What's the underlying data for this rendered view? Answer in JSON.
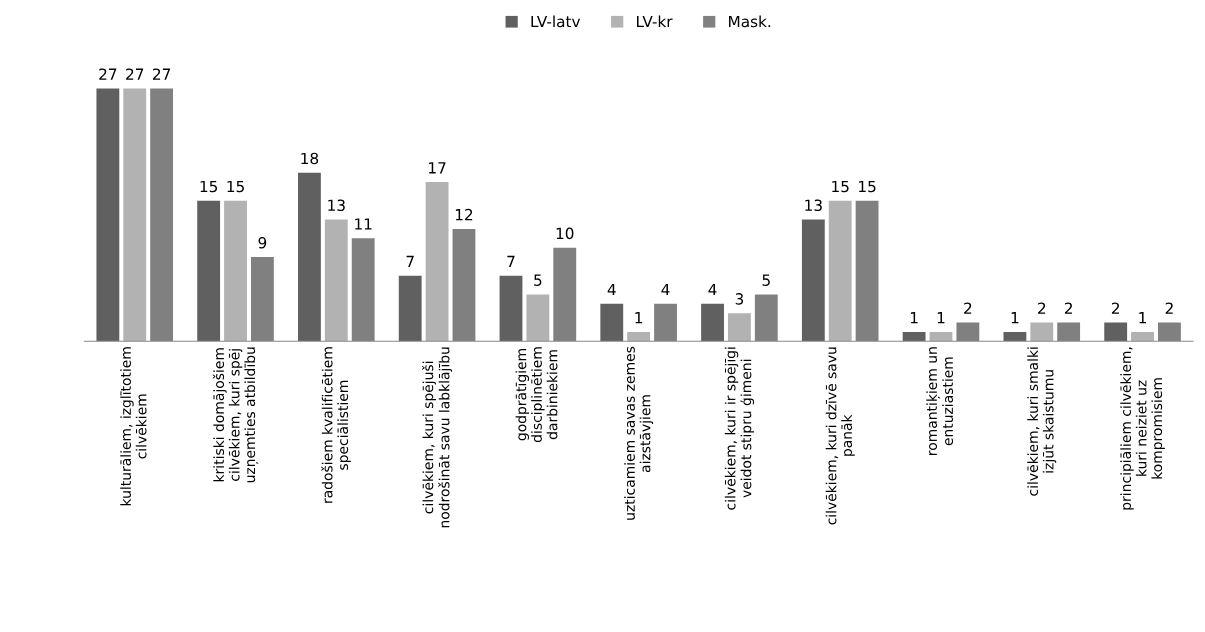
{
  "chart_data": {
    "type": "bar",
    "categories": [
      "kulturāliem, izglītotiem cilvēkiem",
      "kritiski domājošiem cilvēkiem, kuri spēj uzņemties atbildību",
      "radošiem kvalificētiem speciālistiem",
      "cilvēkiem, kuri spējuši nodrošināt savu labklājību",
      "godprātīgiem disciplinētiem darbiniekiem",
      "uzticamiem savas zemes aizstāvjiem",
      "cilvēkiem, kuri ir spējīgi veidot stipru ģimeni",
      "cilvēkiem, kuri dzīvē savu panāk",
      "romantiķiem un entuziastiem",
      "cilvēkiem, kuri smalki izjūt skaistumu",
      "principiāliem cilvēkiem, kuri neiziet uz kompromisiem"
    ],
    "series": [
      {
        "name": "LV-latv",
        "color": "#606060",
        "values": [
          27,
          15,
          18,
          7,
          7,
          4,
          4,
          13,
          1,
          1,
          2
        ]
      },
      {
        "name": "LV-kr",
        "color": "#b2b2b2",
        "values": [
          27,
          15,
          13,
          17,
          5,
          1,
          3,
          15,
          1,
          2,
          1
        ]
      },
      {
        "name": "Mask.",
        "color": "#808080",
        "values": [
          27,
          9,
          11,
          12,
          10,
          4,
          5,
          15,
          2,
          2,
          2
        ]
      }
    ],
    "data_labels": true,
    "legend": "top",
    "grid": false,
    "tick_labels": "x"
  }
}
